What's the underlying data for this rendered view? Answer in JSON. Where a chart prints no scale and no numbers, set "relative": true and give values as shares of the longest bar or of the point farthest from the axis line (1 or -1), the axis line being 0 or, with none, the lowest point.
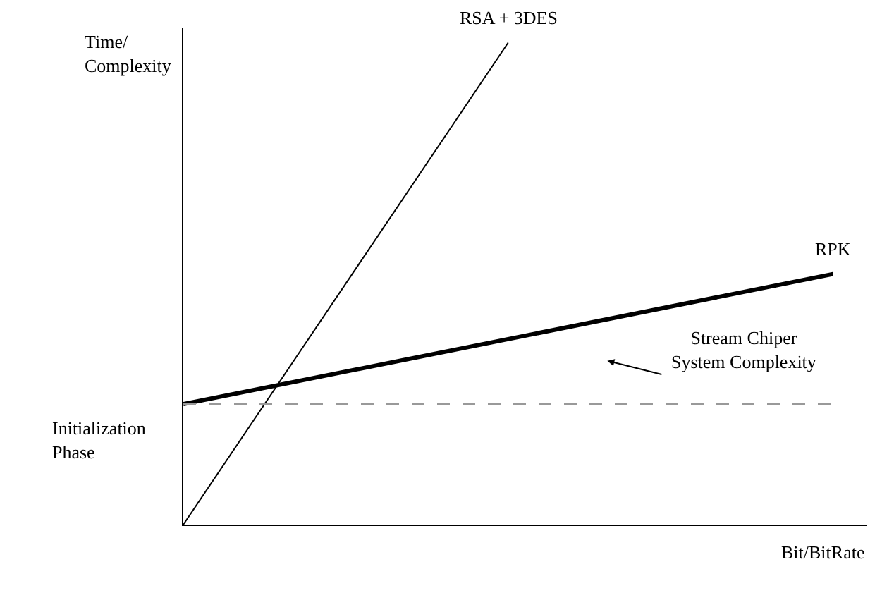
{
  "chart_data": {
    "type": "line",
    "relative": true,
    "xlabel": "Bit/BitRate",
    "ylabel": "Time/\nComplexity",
    "legend": false,
    "marker": "none",
    "categories": [
      null,
      null,
      null
    ],
    "series": [
      {
        "name": "RSA + 3DES",
        "color": "#000000",
        "values": [
          0,
          1.0,
          null
        ]
      },
      {
        "name": "RPK",
        "color": "#000000",
        "values": [
          0.25,
          0.385,
          0.52
        ]
      }
    ],
    "ref_lines": [
      {
        "axis": "y",
        "value": 0.25,
        "color": "#999999",
        "line_style": "dashed"
      }
    ],
    "annotations": [
      "Stream Chiper\nSystem Complexity",
      "Initialization\nPhase"
    ]
  }
}
